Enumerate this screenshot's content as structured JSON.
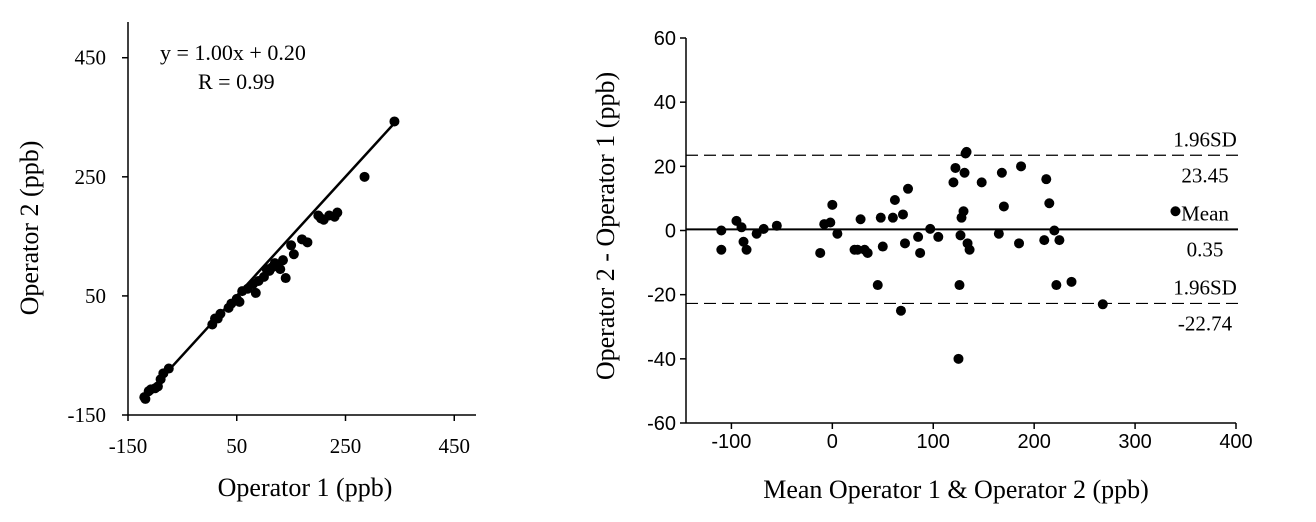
{
  "chart_data": [
    {
      "type": "scatter",
      "title": "",
      "xlabel": "Operator 1 (ppb)",
      "ylabel": "Operator 2  (ppb)",
      "xlim": [
        -150,
        490
      ],
      "ylim": [
        -150,
        510
      ],
      "xticks": [
        "-150",
        "50",
        "250",
        "450"
      ],
      "yticks": [
        "-150",
        "50",
        "250",
        "450"
      ],
      "annotations": [
        "y = 1.00x + 0.20",
        "R = 0.99"
      ],
      "fit_line": {
        "slope": 1.0,
        "intercept": 0.2,
        "x_range": [
          -120,
          340
        ]
      },
      "points": [
        [
          -120,
          -120
        ],
        [
          -118,
          -123
        ],
        [
          -112,
          -110
        ],
        [
          -108,
          -107
        ],
        [
          -100,
          -105
        ],
        [
          -95,
          -102
        ],
        [
          -90,
          -90
        ],
        [
          -85,
          -80
        ],
        [
          -75,
          -72
        ],
        [
          5,
          2
        ],
        [
          10,
          12
        ],
        [
          15,
          12
        ],
        [
          20,
          20
        ],
        [
          35,
          30
        ],
        [
          40,
          37
        ],
        [
          50,
          45
        ],
        [
          55,
          40
        ],
        [
          60,
          58
        ],
        [
          70,
          62
        ],
        [
          80,
          70
        ],
        [
          85,
          55
        ],
        [
          90,
          75
        ],
        [
          100,
          82
        ],
        [
          105,
          95
        ],
        [
          110,
          92
        ],
        [
          115,
          98
        ],
        [
          120,
          105
        ],
        [
          125,
          100
        ],
        [
          130,
          95
        ],
        [
          135,
          110
        ],
        [
          140,
          80
        ],
        [
          150,
          135
        ],
        [
          155,
          120
        ],
        [
          170,
          145
        ],
        [
          180,
          140
        ],
        [
          200,
          185
        ],
        [
          205,
          180
        ],
        [
          210,
          178
        ],
        [
          220,
          185
        ],
        [
          230,
          183
        ],
        [
          235,
          190
        ],
        [
          285,
          250
        ],
        [
          340,
          343
        ]
      ]
    },
    {
      "type": "scatter",
      "title": "",
      "xlabel": "Mean Operator 1 & Operator 2 (ppb)",
      "ylabel": "Operator 2 - Operator 1 (ppb)",
      "xlim": [
        -145,
        400
      ],
      "ylim": [
        -60,
        60
      ],
      "xticks": [
        "-100",
        "0",
        "100",
        "200",
        "300",
        "400"
      ],
      "yticks": [
        "60",
        "40",
        "20",
        "0",
        "-20",
        "-40",
        "-60"
      ],
      "reference_lines": [
        {
          "label": "1.96SD",
          "value_label": "23.45",
          "value": 23.45,
          "style": "dashed"
        },
        {
          "label": "Mean",
          "value_label": "0.35",
          "value": 0.35,
          "style": "solid"
        },
        {
          "label": "1.96SD",
          "value_label": "-22.74",
          "value": -22.74,
          "style": "dashed"
        }
      ],
      "points": [
        [
          -110,
          0
        ],
        [
          -110,
          -6
        ],
        [
          -95,
          3
        ],
        [
          -90,
          1
        ],
        [
          -88,
          -3.5
        ],
        [
          -85,
          -6
        ],
        [
          -75,
          -1
        ],
        [
          -68,
          0.5
        ],
        [
          -55,
          1.5
        ],
        [
          -12,
          -7
        ],
        [
          -8,
          2
        ],
        [
          -2,
          2.5
        ],
        [
          0,
          8
        ],
        [
          5,
          -1
        ],
        [
          22,
          -6
        ],
        [
          25,
          -6
        ],
        [
          28,
          3.5
        ],
        [
          32,
          -6
        ],
        [
          35,
          -7
        ],
        [
          45,
          -17
        ],
        [
          48,
          4
        ],
        [
          50,
          -5
        ],
        [
          60,
          4
        ],
        [
          62,
          9.5
        ],
        [
          68,
          -25
        ],
        [
          70,
          5
        ],
        [
          72,
          -4
        ],
        [
          75,
          13
        ],
        [
          85,
          -2
        ],
        [
          87,
          -7
        ],
        [
          97,
          0.5
        ],
        [
          105,
          -2
        ],
        [
          120,
          15
        ],
        [
          122,
          19.5
        ],
        [
          125,
          -40
        ],
        [
          126,
          -17
        ],
        [
          127,
          -1.5
        ],
        [
          128,
          4
        ],
        [
          130,
          6
        ],
        [
          131,
          18
        ],
        [
          132,
          24
        ],
        [
          133,
          24.5
        ],
        [
          134,
          -4
        ],
        [
          136,
          -6
        ],
        [
          148,
          15
        ],
        [
          165,
          -1
        ],
        [
          168,
          18
        ],
        [
          170,
          7.5
        ],
        [
          185,
          -4
        ],
        [
          187,
          20
        ],
        [
          210,
          -3
        ],
        [
          212,
          16
        ],
        [
          215,
          8.5
        ],
        [
          220,
          0
        ],
        [
          222,
          -17
        ],
        [
          225,
          -3
        ],
        [
          237,
          -16
        ],
        [
          268,
          -23
        ],
        [
          340,
          6
        ]
      ]
    }
  ]
}
